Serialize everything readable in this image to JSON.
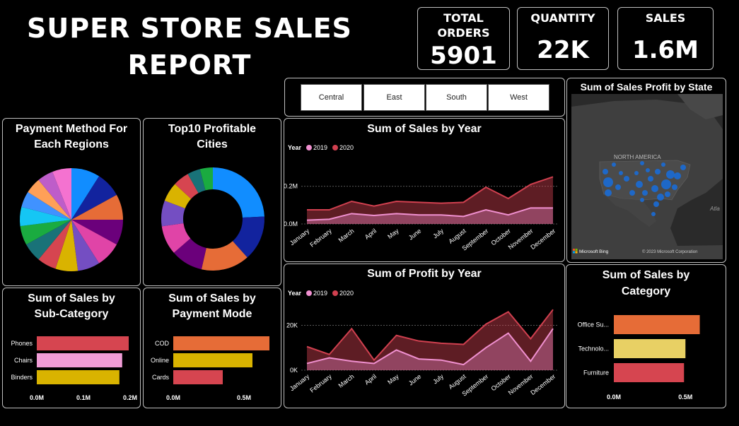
{
  "header": {
    "title_line1": "SUPER STORE SALES",
    "title_line2": "REPORT"
  },
  "kpis": [
    {
      "label_line1": "TOTAL",
      "label_line2": "ORDERS",
      "value": "5901"
    },
    {
      "label_line1": "QUANTITY",
      "label_line2": "",
      "value": "22K"
    },
    {
      "label_line1": "SALES",
      "label_line2": "",
      "value": "1.6M"
    }
  ],
  "slicer": {
    "options": [
      "Central",
      "East",
      "South",
      "West"
    ]
  },
  "map": {
    "title": "Sum of Sales Profit by State",
    "region_label": "NORTH AMERICA",
    "ocean_label": "Atla",
    "brand": "Microsoft Bing",
    "copyright": "© 2023 Microsoft Corporation"
  },
  "colors": {
    "panel_border": "#bfbfbf",
    "series_2019": "#f090d0",
    "series_2020": "#d0404f",
    "bubble": "#1a6bd6"
  },
  "chart_data": [
    {
      "id": "payment_pie",
      "type": "pie",
      "title_line1": "Payment Method For",
      "title_line2": "Each Regions",
      "slices": [
        {
          "value": 9,
          "color": "#118dff"
        },
        {
          "value": 8,
          "color": "#12239e"
        },
        {
          "value": 8,
          "color": "#e66c37"
        },
        {
          "value": 8,
          "color": "#6b007b"
        },
        {
          "value": 8,
          "color": "#e044a7"
        },
        {
          "value": 7,
          "color": "#744ec2"
        },
        {
          "value": 7,
          "color": "#d9b300"
        },
        {
          "value": 6,
          "color": "#d64550"
        },
        {
          "value": 6,
          "color": "#197278"
        },
        {
          "value": 6,
          "color": "#1aab40"
        },
        {
          "value": 6,
          "color": "#15c6f4"
        },
        {
          "value": 5,
          "color": "#4092ff"
        },
        {
          "value": 5,
          "color": "#ffa058"
        },
        {
          "value": 5,
          "color": "#be5dc9"
        },
        {
          "value": 6,
          "color": "#f472d0"
        }
      ]
    },
    {
      "id": "cities_donut",
      "type": "pie",
      "title_line1": "Top10 Profitable",
      "title_line2": "Cities",
      "slices": [
        {
          "value": 24,
          "color": "#118dff"
        },
        {
          "value": 14,
          "color": "#12239e"
        },
        {
          "value": 15,
          "color": "#e66c37"
        },
        {
          "value": 10,
          "color": "#6b007b"
        },
        {
          "value": 9,
          "color": "#e044a7"
        },
        {
          "value": 8,
          "color": "#744ec2"
        },
        {
          "value": 6,
          "color": "#d9b300"
        },
        {
          "value": 5,
          "color": "#d64550"
        },
        {
          "value": 4,
          "color": "#197278"
        },
        {
          "value": 4,
          "color": "#1aab40"
        }
      ]
    },
    {
      "id": "sales_year",
      "type": "area",
      "title": "Sum of Sales by Year",
      "legend_title": "Year",
      "categories": [
        "January",
        "February",
        "March",
        "April",
        "May",
        "June",
        "July",
        "August",
        "September",
        "October",
        "November",
        "December"
      ],
      "series": [
        {
          "name": "2019",
          "color": "#f090d0",
          "values": [
            0.02,
            0.025,
            0.055,
            0.045,
            0.055,
            0.048,
            0.048,
            0.04,
            0.075,
            0.048,
            0.085,
            0.085
          ]
        },
        {
          "name": "2020",
          "color": "#d0404f",
          "values": [
            0.075,
            0.075,
            0.12,
            0.095,
            0.12,
            0.115,
            0.11,
            0.115,
            0.195,
            0.135,
            0.21,
            0.25
          ]
        }
      ],
      "yticks": [
        0,
        0.2
      ],
      "ytick_labels": [
        "0.0M",
        "0.2M"
      ],
      "ylim": [
        0,
        0.27
      ]
    },
    {
      "id": "profit_year",
      "type": "area",
      "title": "Sum of Profit by Year",
      "legend_title": "Year",
      "categories": [
        "January",
        "February",
        "March",
        "April",
        "May",
        "June",
        "July",
        "August",
        "September",
        "October",
        "November",
        "December"
      ],
      "series": [
        {
          "name": "2019",
          "color": "#f090d0",
          "values": [
            3000,
            5500,
            4000,
            3000,
            9000,
            5000,
            4500,
            2500,
            10000,
            16500,
            4000,
            18500
          ]
        },
        {
          "name": "2020",
          "color": "#d0404f",
          "values": [
            10500,
            7000,
            18500,
            4500,
            15500,
            13000,
            12000,
            11500,
            20500,
            26000,
            14000,
            27000
          ]
        }
      ],
      "yticks": [
        0,
        20000
      ],
      "ytick_labels": [
        "0K",
        "20K"
      ],
      "ylim": [
        0,
        28000
      ]
    },
    {
      "id": "sales_subcategory",
      "type": "bar",
      "orientation": "horizontal",
      "title_line1": "Sum of Sales by",
      "title_line2": "Sub-Category",
      "categories": [
        "Phones",
        "Chairs",
        "Binders"
      ],
      "values": [
        0.197,
        0.183,
        0.177
      ],
      "colors": [
        "#d64550",
        "#f09cd6",
        "#d9b300"
      ],
      "xticks": [
        0,
        0.1,
        0.2
      ],
      "xtick_labels": [
        "0.0M",
        "0.1M",
        "0.2M"
      ],
      "xlim": [
        0,
        0.2
      ]
    },
    {
      "id": "sales_paymode",
      "type": "bar",
      "orientation": "horizontal",
      "title_line1": "Sum of Sales by",
      "title_line2": "Payment Mode",
      "categories": [
        "COD",
        "Online",
        "Cards"
      ],
      "values": [
        0.68,
        0.56,
        0.35
      ],
      "colors": [
        "#e66c37",
        "#d9b300",
        "#d64550"
      ],
      "xticks": [
        0,
        0.5
      ],
      "xtick_labels": [
        "0.0M",
        "0.5M"
      ],
      "xlim": [
        0,
        0.8
      ]
    },
    {
      "id": "sales_category",
      "type": "bar",
      "orientation": "horizontal",
      "title_line1": "Sum of Sales by",
      "title_line2": "Category",
      "categories": [
        "Office Su...",
        "Technolo...",
        "Furniture"
      ],
      "values": [
        0.6,
        0.5,
        0.49
      ],
      "colors": [
        "#e66c37",
        "#e8d064",
        "#d64550"
      ],
      "xticks": [
        0,
        0.5
      ],
      "xtick_labels": [
        "0.0M",
        "0.5M"
      ],
      "xlim": [
        0,
        0.78
      ]
    }
  ]
}
